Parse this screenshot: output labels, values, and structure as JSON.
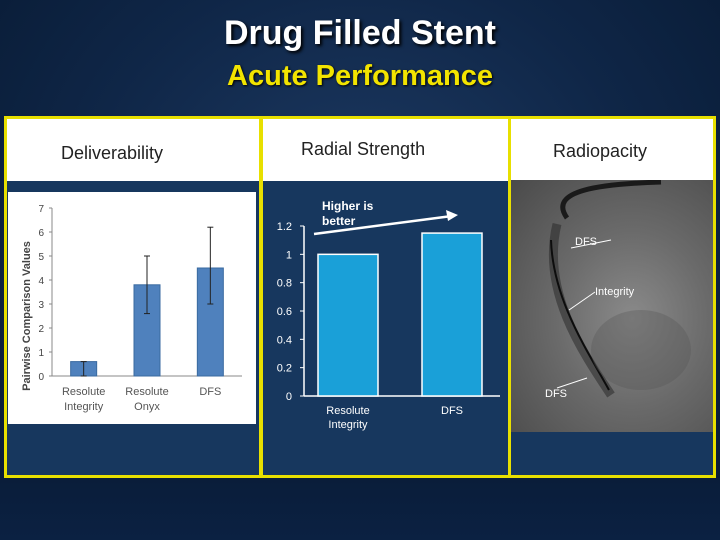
{
  "slide": {
    "title": "Drug Filled Stent",
    "subtitle": "Acute Performance"
  },
  "panels": {
    "deliverability": "Deliverability",
    "radial_strength": "Radial Strength",
    "radiopacity": "Radiopacity"
  },
  "annotation": "Higher is better",
  "xray_labels": {
    "dfs_top": "DFS",
    "integrity": "Integrity",
    "dfs_bottom": "DFS"
  },
  "colors": {
    "bar": "#4f81bd",
    "frame": "#e8e000",
    "accent_title": "#f2e400",
    "bg": "#17375e"
  },
  "chart_data": [
    {
      "type": "bar",
      "title": "",
      "ylabel": "Pairwise Comparison Values",
      "xlabel": "",
      "categories": [
        "Resolute Integrity",
        "Resolute Onyx",
        "DFS"
      ],
      "category_lines": [
        [
          "Resolute",
          "Integrity"
        ],
        [
          "Resolute",
          "Onyx"
        ],
        [
          "DFS"
        ]
      ],
      "values": [
        0.6,
        3.8,
        4.5
      ],
      "error": [
        [
          0,
          0.6
        ],
        [
          2.6,
          5.0
        ],
        [
          3.0,
          6.2
        ]
      ],
      "ylim": [
        0,
        7
      ],
      "yticks": [
        0,
        1,
        2,
        3,
        4,
        5,
        6,
        7
      ],
      "grid": false
    },
    {
      "type": "bar",
      "title": "",
      "xlabel": "",
      "ylabel": "",
      "categories": [
        "Resolute Integrity",
        "DFS"
      ],
      "category_lines": [
        [
          "Resolute",
          "Integrity"
        ],
        [
          "DFS"
        ]
      ],
      "values": [
        1.0,
        1.15
      ],
      "ylim": [
        0,
        1.2
      ],
      "yticks": [
        "0",
        "0.2",
        "0.4",
        "0.6",
        "0.8",
        "1",
        "1.2"
      ],
      "grid": false
    }
  ]
}
